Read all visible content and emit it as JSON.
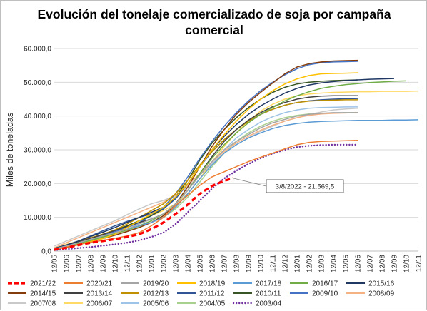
{
  "chart_data": {
    "type": "line",
    "title_lines": [
      "Evolución del tonelaje comercializado de soja por campaña",
      "comercial"
    ],
    "xlabel": "",
    "ylabel": "Miles de toneladas",
    "ylim": [
      0,
      60000
    ],
    "yticks": [
      "0,0",
      "10.000,0",
      "20.000,0",
      "30.000,0",
      "40.000,0",
      "50.000,0",
      "60.000,0"
    ],
    "yticks_values": [
      0,
      10000,
      20000,
      30000,
      40000,
      50000,
      60000
    ],
    "x_categories": [
      "12/05",
      "12/06",
      "12/07",
      "12/08",
      "12/09",
      "12/10",
      "12/11",
      "12/12",
      "12/01",
      "12/02",
      "12/03",
      "12/04",
      "12/05",
      "12/06",
      "12/07",
      "12/08",
      "12/09",
      "12/10",
      "12/11",
      "12/12",
      "12/01",
      "12/02",
      "12/03",
      "12/04",
      "12/05",
      "12/06",
      "12/07",
      "12/08",
      "12/09",
      "12/10",
      "12/11"
    ],
    "grid": true,
    "legend_position": "bottom",
    "annotation": {
      "text": "3/8/2022 - 21.569,5",
      "x": 14.75,
      "y": 21569.5
    },
    "series": [
      {
        "name": "2021/22",
        "color": "#ff0000",
        "dash": "dashed",
        "width": 3.2,
        "x": [
          0,
          1,
          2,
          3,
          4,
          5,
          6,
          7,
          8,
          9,
          10,
          11,
          12,
          13,
          14,
          14.75
        ],
        "y": [
          400,
          1000,
          1800,
          2500,
          3000,
          3500,
          4200,
          5000,
          6500,
          8500,
          11000,
          13800,
          17000,
          19300,
          20800,
          21569.5
        ]
      },
      {
        "name": "2020/21",
        "color": "#ed7d31",
        "dash": "solid",
        "width": 1.5,
        "x": [
          0,
          1,
          2,
          3,
          4,
          5,
          6,
          7,
          8,
          9,
          10,
          11,
          12,
          13,
          14,
          15,
          16,
          17,
          18,
          19,
          20,
          21,
          22,
          23,
          24,
          25
        ],
        "y": [
          500,
          1200,
          2000,
          2600,
          3200,
          3800,
          4500,
          5500,
          7500,
          10000,
          13500,
          16500,
          19500,
          22000,
          23500,
          25000,
          26500,
          27800,
          29000,
          30300,
          31500,
          32200,
          32500,
          32600,
          32700,
          32800
        ]
      },
      {
        "name": "2019/20",
        "color": "#a5a5a5",
        "dash": "solid",
        "width": 1.5,
        "x": [
          0,
          1,
          2,
          3,
          4,
          5,
          6,
          7,
          8,
          9,
          10,
          11,
          12,
          13,
          14,
          15,
          16,
          17,
          18,
          19,
          20,
          21,
          22,
          23,
          24,
          25
        ],
        "y": [
          700,
          1500,
          2500,
          3500,
          4500,
          5500,
          6500,
          8000,
          9500,
          11000,
          14000,
          18000,
          22500,
          26500,
          30000,
          32500,
          34500,
          36500,
          38000,
          39000,
          40000,
          40500,
          40800,
          41000,
          41000,
          41000
        ]
      },
      {
        "name": "2018/19",
        "color": "#ffc000",
        "dash": "solid",
        "width": 1.5,
        "x": [
          0,
          1,
          2,
          3,
          4,
          5,
          6,
          7,
          8,
          9,
          10,
          11,
          12,
          13,
          14,
          15,
          16,
          17,
          18,
          19,
          20,
          21,
          22,
          23,
          24,
          25
        ],
        "y": [
          500,
          1200,
          2000,
          2800,
          3700,
          5000,
          7000,
          9000,
          11000,
          13000,
          16000,
          20000,
          25000,
          30000,
          34500,
          38500,
          42000,
          45000,
          47500,
          49500,
          51000,
          52000,
          52500,
          52600,
          52700,
          52800
        ]
      },
      {
        "name": "2017/18",
        "color": "#5b9bd5",
        "dash": "solid",
        "width": 1.5,
        "x": [
          0,
          1,
          2,
          3,
          4,
          5,
          6,
          7,
          8,
          9,
          10,
          11,
          12,
          13,
          14,
          15,
          16,
          17,
          18,
          19,
          20,
          21,
          22,
          23,
          24,
          25,
          26,
          27,
          28,
          29,
          30
        ],
        "y": [
          600,
          1500,
          2500,
          3500,
          4500,
          5500,
          6500,
          7500,
          8500,
          10000,
          13000,
          17000,
          21500,
          25500,
          29000,
          31500,
          33500,
          35000,
          36300,
          37200,
          37800,
          38200,
          38400,
          38500,
          38600,
          38700,
          38700,
          38700,
          38800,
          38800,
          38900
        ]
      },
      {
        "name": "2016/17",
        "color": "#70ad47",
        "dash": "solid",
        "width": 1.5,
        "x": [
          0,
          1,
          2,
          3,
          4,
          5,
          6,
          7,
          8,
          9,
          10,
          11,
          12,
          13,
          14,
          15,
          16,
          17,
          18,
          19,
          20,
          21,
          22,
          23,
          24,
          25,
          26,
          27,
          28,
          29
        ],
        "y": [
          600,
          1400,
          2300,
          3200,
          4200,
          5200,
          6300,
          7500,
          9000,
          11000,
          14000,
          18000,
          23000,
          27500,
          31500,
          35000,
          38000,
          40500,
          42500,
          44500,
          46000,
          47200,
          48200,
          48800,
          49300,
          49600,
          49900,
          50100,
          50300,
          50400
        ]
      },
      {
        "name": "2015/16",
        "color": "#203864",
        "dash": "solid",
        "width": 1.5,
        "x": [
          0,
          1,
          2,
          3,
          4,
          5,
          6,
          7,
          8,
          9,
          10,
          11,
          12,
          13,
          14,
          15,
          16,
          17,
          18,
          19,
          20,
          21,
          22,
          23,
          24,
          25,
          26,
          27,
          28
        ],
        "y": [
          800,
          1800,
          3000,
          4300,
          5600,
          7000,
          8500,
          10000,
          11500,
          13000,
          16000,
          20000,
          25000,
          30000,
          34000,
          37500,
          40500,
          43000,
          45000,
          46800,
          48200,
          49200,
          49800,
          50200,
          50500,
          50700,
          50900,
          51000,
          51100
        ]
      },
      {
        "name": "2014/15",
        "color": "#843c0c",
        "dash": "solid",
        "width": 1.5,
        "x": [
          0,
          1,
          2,
          3,
          4,
          5,
          6,
          7,
          8,
          9,
          10,
          11,
          12,
          13,
          14,
          15,
          16,
          17,
          18,
          19,
          20,
          21,
          22,
          23,
          24,
          25
        ],
        "y": [
          500,
          1100,
          1900,
          2800,
          3700,
          4700,
          5800,
          7000,
          8500,
          10500,
          14000,
          19000,
          25000,
          31000,
          36000,
          40500,
          44000,
          47000,
          49800,
          52500,
          54500,
          55500,
          56000,
          56300,
          56400,
          56500
        ]
      },
      {
        "name": "2013/14",
        "color": "#404040",
        "dash": "solid",
        "width": 1.5,
        "x": [
          0,
          1,
          2,
          3,
          4,
          5,
          6,
          7,
          8,
          9,
          10,
          11,
          12,
          13,
          14,
          15,
          16,
          17,
          18,
          19,
          20,
          21,
          22,
          23,
          24,
          25
        ],
        "y": [
          700,
          1600,
          2700,
          3800,
          4900,
          6100,
          7300,
          8500,
          9500,
          11000,
          14000,
          18000,
          23000,
          28000,
          32500,
          36000,
          38800,
          41000,
          42800,
          44000,
          45000,
          45600,
          45900,
          46000,
          46000,
          46000
        ]
      },
      {
        "name": "2012/13",
        "color": "#bf9000",
        "dash": "solid",
        "width": 1.5,
        "x": [
          0,
          1,
          2,
          3,
          4,
          5,
          6,
          7,
          8,
          9,
          10,
          11,
          12,
          13,
          14,
          15,
          16,
          17,
          18,
          19,
          20,
          21,
          22,
          23,
          24,
          25
        ],
        "y": [
          800,
          1700,
          2800,
          3900,
          5000,
          6300,
          8000,
          10000,
          12000,
          14000,
          17000,
          21000,
          25500,
          29500,
          33000,
          36000,
          38500,
          40500,
          42000,
          43200,
          44000,
          44400,
          44600,
          44700,
          44800,
          44800
        ]
      },
      {
        "name": "2011/12",
        "color": "#2f5597",
        "dash": "solid",
        "width": 1.5,
        "x": [
          0,
          1,
          2,
          3,
          4,
          5,
          6,
          7,
          8,
          9,
          10,
          11,
          12,
          13,
          14,
          15,
          16,
          17,
          18,
          19,
          20,
          21,
          22,
          23,
          24,
          25
        ],
        "y": [
          800,
          1800,
          3000,
          4500,
          6000,
          7500,
          8800,
          10000,
          11000,
          12500,
          15500,
          20000,
          25000,
          29500,
          33000,
          36000,
          38500,
          40500,
          42000,
          43200,
          44000,
          44500,
          44800,
          45000,
          45100,
          45200
        ]
      },
      {
        "name": "2010/11",
        "color": "#375623",
        "dash": "solid",
        "width": 1.5,
        "x": [
          0,
          1,
          2,
          3,
          4,
          5,
          6,
          7,
          8,
          9,
          10,
          11,
          12,
          13,
          14,
          15,
          16,
          17,
          18,
          19,
          20,
          21,
          22,
          23,
          24,
          25
        ],
        "y": [
          700,
          1600,
          2700,
          3800,
          5000,
          6200,
          7500,
          9000,
          10500,
          12500,
          16000,
          21000,
          27000,
          32000,
          36000,
          39500,
          42500,
          45000,
          47000,
          48500,
          49500,
          50000,
          50300,
          50500,
          50600,
          50700
        ]
      },
      {
        "name": "2009/10",
        "color": "#4472c4",
        "dash": "solid",
        "width": 1.5,
        "x": [
          0,
          1,
          2,
          3,
          4,
          5,
          6,
          7,
          8,
          9,
          10,
          11,
          12,
          13,
          14,
          15,
          16,
          17,
          18,
          19,
          20,
          21,
          22,
          23,
          24,
          25
        ],
        "y": [
          600,
          1400,
          2400,
          3500,
          4600,
          5800,
          7000,
          8500,
          10500,
          13000,
          17000,
          22000,
          27500,
          32500,
          37000,
          41000,
          44500,
          47500,
          50000,
          52200,
          54000,
          55200,
          55800,
          56000,
          56100,
          56200
        ]
      },
      {
        "name": "2008/09",
        "color": "#f4b183",
        "dash": "solid",
        "width": 1.5,
        "x": [
          0,
          1,
          2,
          3,
          4,
          5,
          6,
          7,
          8,
          9,
          10,
          11,
          12,
          13,
          14,
          15,
          16,
          17,
          18,
          19,
          20,
          21,
          22,
          23,
          24,
          25
        ],
        "y": [
          1000,
          2500,
          4000,
          5500,
          7000,
          8500,
          10000,
          11500,
          13000,
          14500,
          16500,
          19500,
          23000,
          26500,
          29500,
          32000,
          34000,
          35800,
          37300,
          38500,
          39500,
          40200,
          40600,
          40800,
          40900,
          41000
        ]
      },
      {
        "name": "2007/08",
        "color": "#c9c9c9",
        "dash": "solid",
        "width": 1.5,
        "x": [
          0,
          1,
          2,
          3,
          4,
          5,
          6,
          7,
          8,
          9,
          10,
          11,
          12,
          13,
          14,
          15,
          16,
          17,
          18,
          19,
          20,
          21,
          22,
          23,
          24,
          25
        ],
        "y": [
          1500,
          3000,
          4500,
          6000,
          7500,
          9000,
          10800,
          12500,
          14000,
          15000,
          16500,
          19000,
          22500,
          26000,
          29000,
          31500,
          33500,
          35500,
          37000,
          38500,
          39500,
          40500,
          41200,
          41800,
          42100,
          42300
        ]
      },
      {
        "name": "2006/07",
        "color": "#ffd966",
        "dash": "solid",
        "width": 1.5,
        "x": [
          0,
          1,
          2,
          3,
          4,
          5,
          6,
          7,
          8,
          9,
          10,
          11,
          12,
          13,
          14,
          15,
          16,
          17,
          18,
          19,
          20,
          21,
          22,
          23,
          24,
          25,
          26,
          27,
          28,
          29,
          30
        ],
        "y": [
          1000,
          2000,
          3000,
          4000,
          5000,
          6000,
          7500,
          9000,
          10500,
          12000,
          14000,
          17000,
          21500,
          26500,
          31000,
          35000,
          38500,
          41500,
          43500,
          45000,
          46000,
          46500,
          46800,
          47000,
          47100,
          47200,
          47200,
          47300,
          47300,
          47300,
          47400
        ]
      },
      {
        "name": "2005/06",
        "color": "#9dc3e6",
        "dash": "solid",
        "width": 1.5,
        "x": [
          0,
          1,
          2,
          3,
          4,
          5,
          6,
          7,
          8,
          9,
          10,
          11,
          12,
          13,
          14,
          15,
          16,
          17,
          18,
          19,
          20,
          21,
          22,
          23,
          24,
          25
        ],
        "y": [
          800,
          1700,
          2700,
          3700,
          4700,
          5800,
          7000,
          8200,
          9500,
          11000,
          13500,
          17000,
          21500,
          26000,
          30000,
          33500,
          36000,
          38200,
          39800,
          41000,
          41800,
          42300,
          42500,
          42600,
          42700,
          42700
        ]
      },
      {
        "name": "2004/05",
        "color": "#a9d18e",
        "dash": "solid",
        "width": 1.5,
        "x": [
          0,
          1,
          2,
          3,
          4,
          5,
          6,
          7,
          8,
          9,
          10,
          11,
          12,
          13,
          14,
          15,
          16,
          17,
          18,
          19,
          20,
          21,
          22,
          23,
          24,
          25
        ],
        "y": [
          600,
          1300,
          2200,
          3100,
          4000,
          5000,
          6000,
          7200,
          8500,
          10000,
          12500,
          16000,
          20500,
          25000,
          29000,
          32500,
          35000,
          37000,
          38500,
          39500,
          40200,
          40600,
          40800,
          40900,
          41000,
          41000
        ]
      },
      {
        "name": "2003/04",
        "color": "#7030a0",
        "dash": "dotted",
        "width": 2.4,
        "x": [
          0,
          1,
          2,
          3,
          4,
          5,
          6,
          7,
          8,
          9,
          10,
          11,
          12,
          13,
          14,
          15,
          16,
          17,
          18,
          19,
          20,
          21,
          22,
          23,
          24,
          25
        ],
        "y": [
          300,
          600,
          900,
          1200,
          1600,
          2000,
          2500,
          3200,
          4200,
          5500,
          8000,
          11500,
          15000,
          18500,
          21500,
          23800,
          25800,
          27500,
          28900,
          30000,
          30800,
          31200,
          31400,
          31500,
          31500,
          31500
        ]
      }
    ]
  }
}
